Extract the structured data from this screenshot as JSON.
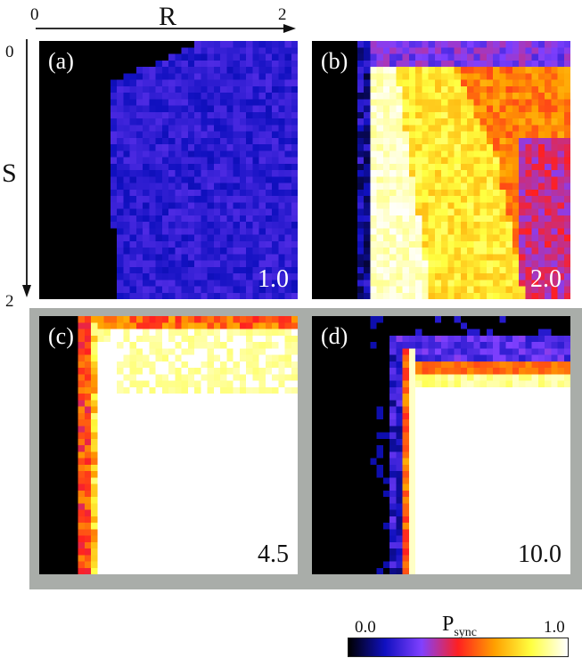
{
  "chart_data": {
    "type": "heatmap",
    "x_axis": {
      "label": "R",
      "range": [
        0,
        2
      ],
      "ticks": [
        "0",
        "2"
      ]
    },
    "y_axis": {
      "label": "S",
      "range": [
        0,
        2
      ],
      "ticks": [
        "0",
        "2"
      ],
      "direction": "top-to-bottom"
    },
    "grid_resolution": [
      40,
      40
    ],
    "panels": [
      {
        "label": "(a)",
        "value": "1.0",
        "regime": "a"
      },
      {
        "label": "(b)",
        "value": "2.0",
        "regime": "b"
      },
      {
        "label": "(c)",
        "value": "4.5",
        "regime": "c"
      },
      {
        "label": "(d)",
        "value": "10.0",
        "regime": "d"
      }
    ],
    "highlighted_panels": [
      "(c)",
      "(d)"
    ],
    "colorbar": {
      "title": "P",
      "title_sub": "sync",
      "min_label": "0.0",
      "max_label": "1.0",
      "range": [
        0.0,
        1.0
      ],
      "colormap": [
        "#000000",
        "#1010c0",
        "#8040ff",
        "#ff2020",
        "#ffa000",
        "#ffff40",
        "#ffffff"
      ]
    }
  },
  "colors": {
    "panel_background": "#0a0a0a",
    "highlight_frame": "#a9ada9",
    "value_light": "#ffffff",
    "value_dark": "#111111"
  }
}
